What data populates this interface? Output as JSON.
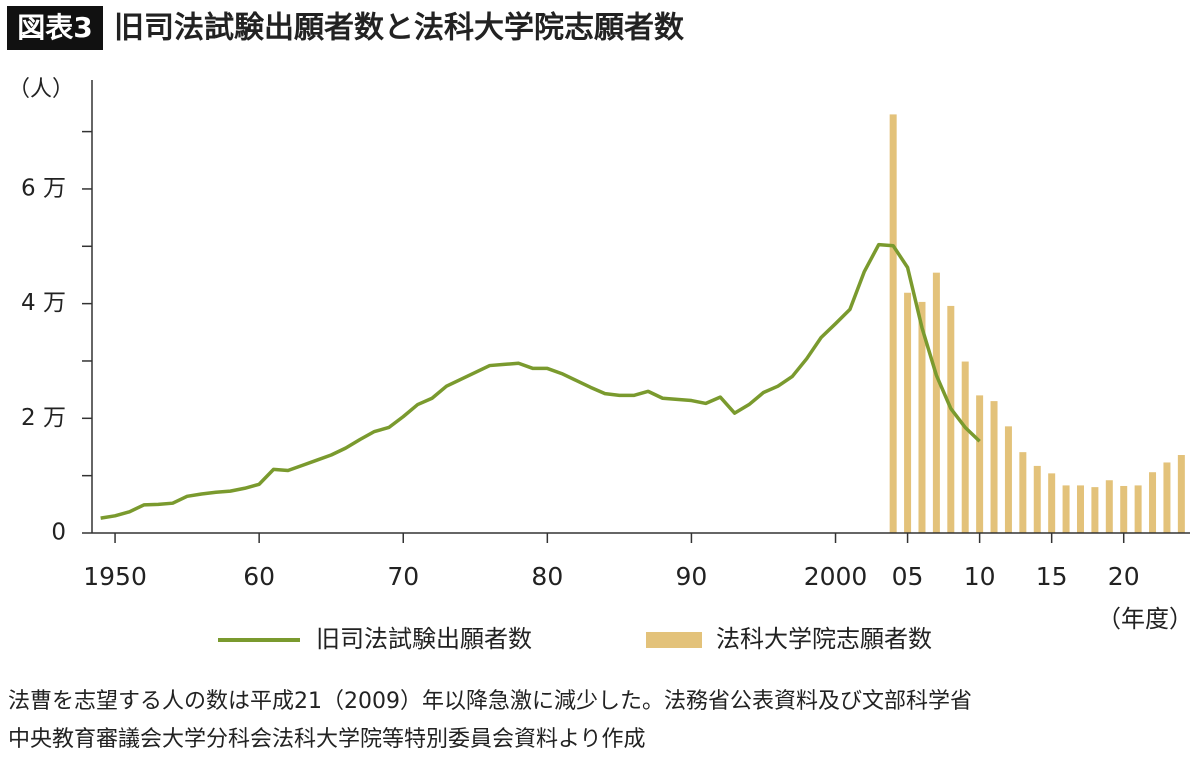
{
  "chart_data": {
    "type": "combo",
    "label": "図表3",
    "title": "旧司法試験出願者数と法科大学院志願者数",
    "y_label": "（人）",
    "x_label": "（年度）",
    "xlim": [
      1948.4,
      2024.6
    ],
    "xticks": [
      1950,
      {
        "value": 1960,
        "label": "60"
      },
      {
        "value": 1970,
        "label": "70"
      },
      {
        "value": 1980,
        "label": "80"
      },
      {
        "value": 1990,
        "label": "90"
      },
      2000,
      {
        "value": 2005,
        "label": "05"
      },
      {
        "value": 2010,
        "label": "10"
      },
      {
        "value": 2015,
        "label": "15"
      },
      {
        "value": 2020,
        "label": "20"
      }
    ],
    "ylim": [
      0,
      79000
    ],
    "yticks": [
      0,
      {
        "value": 20000,
        "label": "2 万"
      },
      {
        "value": 40000,
        "label": "4 万"
      },
      {
        "value": 60000,
        "label": "6 万"
      }
    ],
    "yticks_minor": [
      10000,
      30000,
      50000,
      70000
    ],
    "series": [
      {
        "name": "旧司法試験出願者数",
        "type": "line",
        "color": "#7a9a2e",
        "x": [
          1949,
          1950,
          1951,
          1952,
          1953,
          1954,
          1955,
          1956,
          1957,
          1958,
          1959,
          1960,
          1961,
          1962,
          1963,
          1964,
          1965,
          1966,
          1967,
          1968,
          1969,
          1970,
          1971,
          1972,
          1973,
          1974,
          1975,
          1976,
          1977,
          1978,
          1979,
          1980,
          1981,
          1982,
          1983,
          1984,
          1985,
          1986,
          1987,
          1988,
          1989,
          1990,
          1991,
          1992,
          1993,
          1994,
          1995,
          1996,
          1997,
          1998,
          1999,
          2000,
          2001,
          2002,
          2003,
          2004,
          2005,
          2006,
          2007,
          2008,
          2009,
          2010
        ],
        "values": [
          2600,
          3000,
          3700,
          4900,
          5000,
          5200,
          6400,
          6800,
          7100,
          7300,
          7800,
          8500,
          11100,
          10900,
          11800,
          12700,
          13600,
          14800,
          16300,
          17700,
          18400,
          20300,
          22400,
          23500,
          25600,
          26800,
          28000,
          29200,
          29400,
          29600,
          28700,
          28700,
          27800,
          26600,
          25400,
          24300,
          24000,
          24000,
          24700,
          23500,
          23300,
          23100,
          22600,
          23700,
          20900,
          22400,
          24500,
          25600,
          27300,
          30400,
          34100,
          36500,
          39000,
          45600,
          50300,
          50100,
          46300,
          35800,
          27500,
          21700,
          18400,
          16000
        ]
      },
      {
        "name": "法科大学院志願者数",
        "type": "bar",
        "color": "#e3c27a",
        "x": [
          2004,
          2005,
          2006,
          2007,
          2008,
          2009,
          2010,
          2011,
          2012,
          2013,
          2014,
          2015,
          2016,
          2017,
          2018,
          2019,
          2020,
          2021,
          2022,
          2023,
          2024
        ],
        "values": [
          73000,
          41900,
          40300,
          45400,
          39600,
          29900,
          24000,
          23000,
          18600,
          14100,
          11700,
          10400,
          8300,
          8300,
          8000,
          9200,
          8200,
          8300,
          10600,
          12300,
          13600
        ]
      }
    ],
    "note_lines": [
      "法曹を志望する人の数は平成21（2009）年以降急激に減少した。法務省公表資料及び文部科学省",
      "中央教育審議会大学分科会法科大学院等特別委員会資料より作成"
    ]
  }
}
